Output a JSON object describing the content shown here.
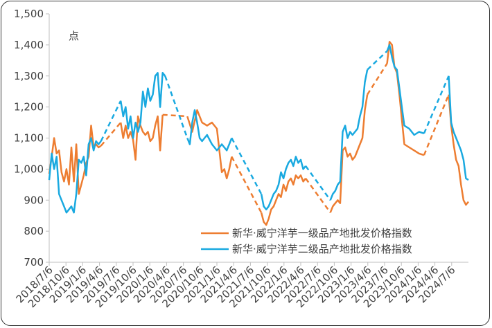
{
  "chart_data": {
    "type": "line",
    "unit_label": "点",
    "ylim": [
      700,
      1500
    ],
    "y_ticks": [
      "1,500",
      "1,400",
      "1,300",
      "1,200",
      "1,100",
      "1,000",
      "900",
      "800",
      "700"
    ],
    "x_ticks": [
      "2018/7/6",
      "2018/10/6",
      "2019/1/6",
      "2019/4/6",
      "2019/7/6",
      "2019/10/6",
      "2020/1/6",
      "2020/4/6",
      "2020/7/6",
      "2020/10/6",
      "2021/1/6",
      "2021/4/6",
      "2021/7/6",
      "2021/10/6",
      "2022/1/6",
      "2022/4/6",
      "2022/7/6",
      "2022/10/6",
      "2023/1/6",
      "2023/4/6",
      "2023/7/6",
      "2023/10/6",
      "2024/1/6",
      "2024/4/6",
      "2024/7/6"
    ],
    "grid": false,
    "legend_position": "bottom-right",
    "series": [
      {
        "name": "新华·威宁洋芋一级品产地批发价格指数",
        "color": "#ED7D31",
        "points": [
          [
            0,
            985
          ],
          [
            0.5,
            1040
          ],
          [
            1.0,
            1100
          ],
          [
            1.5,
            1050
          ],
          [
            2.0,
            1060
          ],
          [
            2.5,
            990
          ],
          [
            3.0,
            960
          ],
          [
            3.5,
            1000
          ],
          [
            4.0,
            950
          ],
          [
            4.5,
            1070
          ],
          [
            5.0,
            960
          ],
          [
            5.5,
            1080
          ],
          [
            6.0,
            920
          ],
          [
            6.5,
            950
          ],
          [
            7.0,
            980
          ],
          [
            7.5,
            1020
          ],
          [
            8.0,
            1040
          ],
          [
            8.5,
            1140
          ],
          [
            9.0,
            1070
          ],
          [
            9.5,
            1080
          ],
          [
            10.0,
            1070
          ],
          [
            10.5,
            1075
          ],
          [
            14.5,
            1150
          ],
          [
            15.0,
            1100
          ],
          [
            15.5,
            1140
          ],
          [
            16.0,
            1100
          ],
          [
            16.5,
            1120
          ],
          [
            17.0,
            1095
          ],
          [
            17.5,
            1030
          ],
          [
            18.0,
            1170
          ],
          [
            18.5,
            1140
          ],
          [
            19.0,
            1120
          ],
          [
            19.5,
            1110
          ],
          [
            20.0,
            1120
          ],
          [
            20.5,
            1090
          ],
          [
            21.0,
            1100
          ],
          [
            21.5,
            1140
          ],
          [
            22.0,
            1170
          ],
          [
            22.5,
            1060
          ],
          [
            23.0,
            1175
          ],
          [
            28.0,
            1170
          ],
          [
            29.0,
            1120
          ],
          [
            30.0,
            1190
          ],
          [
            31.0,
            1150
          ],
          [
            32.0,
            1140
          ],
          [
            33.0,
            1150
          ],
          [
            34.0,
            1130
          ],
          [
            35.0,
            990
          ],
          [
            35.5,
            1000
          ],
          [
            36.0,
            970
          ],
          [
            36.5,
            1000
          ],
          [
            37.0,
            1040
          ],
          [
            43.0,
            860
          ],
          [
            43.5,
            830
          ],
          [
            44.0,
            820
          ],
          [
            44.5,
            840
          ],
          [
            45.0,
            870
          ],
          [
            45.5,
            880
          ],
          [
            46.0,
            900
          ],
          [
            46.5,
            920
          ],
          [
            47.0,
            910
          ],
          [
            47.5,
            950
          ],
          [
            48.0,
            930
          ],
          [
            48.5,
            960
          ],
          [
            49.0,
            970
          ],
          [
            49.5,
            950
          ],
          [
            50.0,
            980
          ],
          [
            50.5,
            970
          ],
          [
            51.0,
            980
          ],
          [
            51.5,
            960
          ],
          [
            52.0,
            970
          ],
          [
            57.0,
            860
          ],
          [
            57.5,
            880
          ],
          [
            58.0,
            890
          ],
          [
            58.5,
            900
          ],
          [
            59.0,
            890
          ],
          [
            59.5,
            1060
          ],
          [
            60.0,
            1070
          ],
          [
            60.5,
            1040
          ],
          [
            61.0,
            1050
          ],
          [
            61.5,
            1030
          ],
          [
            62.0,
            1040
          ],
          [
            62.5,
            1060
          ],
          [
            63.0,
            1080
          ],
          [
            63.5,
            1100
          ],
          [
            64.0,
            1190
          ],
          [
            64.5,
            1240
          ],
          [
            68.5,
            1340
          ],
          [
            69.0,
            1410
          ],
          [
            69.5,
            1400
          ],
          [
            70.0,
            1330
          ],
          [
            70.5,
            1310
          ],
          [
            71.0,
            1240
          ],
          [
            71.5,
            1160
          ],
          [
            72.0,
            1080
          ],
          [
            73.0,
            1070
          ],
          [
            74.0,
            1060
          ],
          [
            75.0,
            1050
          ],
          [
            76.0,
            1045
          ],
          [
            81.0,
            1240
          ],
          [
            81.5,
            1140
          ],
          [
            82.0,
            1080
          ],
          [
            82.5,
            1030
          ],
          [
            83.0,
            1010
          ],
          [
            83.5,
            950
          ],
          [
            84.0,
            900
          ],
          [
            84.5,
            885
          ],
          [
            85.0,
            895
          ]
        ]
      },
      {
        "name": "新华·威宁洋芋二级品产地批发价格指数",
        "color": "#19A9E0",
        "points": [
          [
            0,
            965
          ],
          [
            0.5,
            1050
          ],
          [
            1.0,
            1000
          ],
          [
            1.5,
            1040
          ],
          [
            2.0,
            920
          ],
          [
            2.5,
            900
          ],
          [
            3.0,
            880
          ],
          [
            3.5,
            860
          ],
          [
            4.0,
            870
          ],
          [
            4.5,
            880
          ],
          [
            5.0,
            860
          ],
          [
            5.5,
            920
          ],
          [
            6.0,
            1030
          ],
          [
            6.5,
            1020
          ],
          [
            7.0,
            1040
          ],
          [
            7.5,
            980
          ],
          [
            8.0,
            1080
          ],
          [
            8.5,
            1100
          ],
          [
            9.0,
            1060
          ],
          [
            9.5,
            1090
          ],
          [
            10.0,
            1080
          ],
          [
            10.5,
            1090
          ],
          [
            14.5,
            1220
          ],
          [
            15.0,
            1170
          ],
          [
            15.5,
            1200
          ],
          [
            16.0,
            1130
          ],
          [
            16.5,
            1170
          ],
          [
            17.0,
            1100
          ],
          [
            17.5,
            1150
          ],
          [
            18.0,
            1120
          ],
          [
            18.5,
            1150
          ],
          [
            19.0,
            1250
          ],
          [
            19.5,
            1200
          ],
          [
            20.0,
            1260
          ],
          [
            20.5,
            1220
          ],
          [
            21.0,
            1240
          ],
          [
            21.5,
            1300
          ],
          [
            22.0,
            1310
          ],
          [
            22.5,
            1200
          ],
          [
            23.0,
            1310
          ],
          [
            23.5,
            1300
          ],
          [
            28.0,
            1100
          ],
          [
            28.5,
            1080
          ],
          [
            29.0,
            1150
          ],
          [
            29.5,
            1190
          ],
          [
            30.0,
            1150
          ],
          [
            30.5,
            1100
          ],
          [
            31.0,
            1090
          ],
          [
            32.0,
            1110
          ],
          [
            33.0,
            1080
          ],
          [
            34.0,
            1060
          ],
          [
            35.0,
            1080
          ],
          [
            35.5,
            1070
          ],
          [
            36.0,
            1060
          ],
          [
            36.5,
            1080
          ],
          [
            37.0,
            1100
          ],
          [
            43.0,
            920
          ],
          [
            43.5,
            880
          ],
          [
            44.0,
            870
          ],
          [
            44.5,
            880
          ],
          [
            45.0,
            900
          ],
          [
            45.5,
            920
          ],
          [
            46.0,
            930
          ],
          [
            46.5,
            950
          ],
          [
            47.0,
            990
          ],
          [
            47.5,
            970
          ],
          [
            48.0,
            1000
          ],
          [
            48.5,
            1020
          ],
          [
            49.0,
            1030
          ],
          [
            49.5,
            1010
          ],
          [
            50.0,
            1040
          ],
          [
            50.5,
            1020
          ],
          [
            51.0,
            1030
          ],
          [
            51.5,
            1000
          ],
          [
            52.0,
            1010
          ],
          [
            57.0,
            900
          ],
          [
            57.5,
            920
          ],
          [
            58.0,
            930
          ],
          [
            58.5,
            950
          ],
          [
            59.0,
            960
          ],
          [
            59.5,
            1120
          ],
          [
            60.0,
            1140
          ],
          [
            60.5,
            1100
          ],
          [
            61.0,
            1120
          ],
          [
            61.5,
            1110
          ],
          [
            62.0,
            1120
          ],
          [
            62.5,
            1130
          ],
          [
            63.0,
            1170
          ],
          [
            63.5,
            1200
          ],
          [
            64.0,
            1280
          ],
          [
            64.5,
            1320
          ],
          [
            68.5,
            1380
          ],
          [
            69.0,
            1400
          ],
          [
            69.5,
            1360
          ],
          [
            70.0,
            1330
          ],
          [
            70.5,
            1320
          ],
          [
            71.0,
            1260
          ],
          [
            71.5,
            1200
          ],
          [
            72.0,
            1140
          ],
          [
            73.0,
            1130
          ],
          [
            74.0,
            1110
          ],
          [
            75.0,
            1120
          ],
          [
            76.0,
            1115
          ],
          [
            81.0,
            1300
          ],
          [
            81.5,
            1150
          ],
          [
            82.0,
            1120
          ],
          [
            82.5,
            1100
          ],
          [
            83.0,
            1080
          ],
          [
            83.5,
            1060
          ],
          [
            84.0,
            1030
          ],
          [
            84.5,
            970
          ],
          [
            85.0,
            965
          ]
        ]
      }
    ]
  }
}
